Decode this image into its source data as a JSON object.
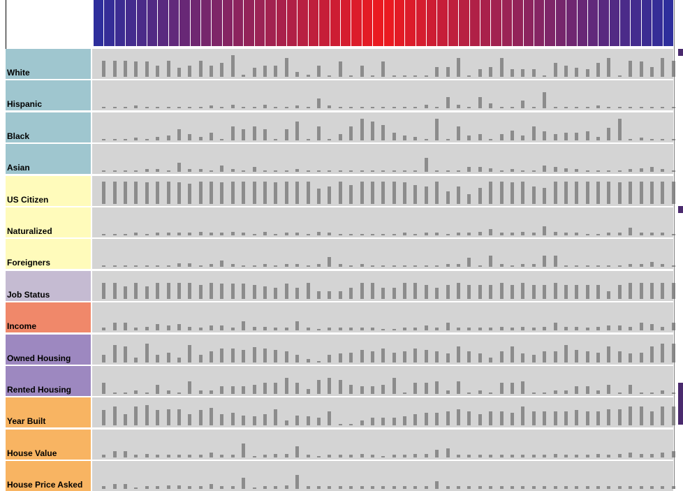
{
  "chart_data": {
    "type": "heatmap",
    "column_count": 54,
    "header_gradient": {
      "ends_color": "#2e2e9c",
      "center_color": "#ee1a1e"
    },
    "rows": [
      {
        "label": "White",
        "color": "#9fc6cf",
        "values": [
          0.65,
          0.65,
          0.65,
          0.6,
          0.6,
          0.45,
          0.65,
          0.35,
          0.45,
          0.65,
          0.45,
          0.55,
          0.85,
          0.08,
          0.35,
          0.45,
          0.45,
          0.75,
          0.2,
          0.08,
          0.45,
          0.05,
          0.6,
          0.05,
          0.45,
          0.05,
          0.6,
          0.05,
          0.05,
          0.05,
          0.05,
          0.4,
          0.4,
          0.75,
          0.05,
          0.3,
          0.4,
          0.75,
          0.3,
          0.3,
          0.3,
          0.05,
          0.55,
          0.45,
          0.35,
          0.3,
          0.55,
          0.75,
          0.05,
          0.65,
          0.6,
          0.4,
          0.75,
          0.65
        ]
      },
      {
        "label": "Hispanic",
        "color": "#9fc6cf",
        "values": [
          0.05,
          0.05,
          0.05,
          0.12,
          0.05,
          0.05,
          0.05,
          0.05,
          0.05,
          0.05,
          0.12,
          0.05,
          0.15,
          0.05,
          0.05,
          0.15,
          0.05,
          0.05,
          0.12,
          0.05,
          0.4,
          0.12,
          0.05,
          0.05,
          0.05,
          0.05,
          0.05,
          0.05,
          0.05,
          0.05,
          0.15,
          0.05,
          0.45,
          0.15,
          0.05,
          0.45,
          0.2,
          0.05,
          0.05,
          0.3,
          0.05,
          0.65,
          0.05,
          0.05,
          0.05,
          0.05,
          0.12,
          0.05,
          0.05,
          0.05,
          0.05,
          0.05,
          0.05,
          0.05
        ]
      },
      {
        "label": "Black",
        "color": "#9fc6cf",
        "values": [
          0.05,
          0.05,
          0.05,
          0.12,
          0.05,
          0.15,
          0.2,
          0.45,
          0.25,
          0.15,
          0.3,
          0.05,
          0.55,
          0.45,
          0.55,
          0.45,
          0.05,
          0.45,
          0.75,
          0.05,
          0.55,
          0.05,
          0.25,
          0.55,
          0.85,
          0.75,
          0.6,
          0.3,
          0.2,
          0.15,
          0.05,
          0.85,
          0.05,
          0.55,
          0.2,
          0.25,
          0.05,
          0.25,
          0.4,
          0.2,
          0.55,
          0.35,
          0.25,
          0.3,
          0.3,
          0.35,
          0.15,
          0.5,
          0.85,
          0.05,
          0.12,
          0.05,
          0.05,
          0.05
        ]
      },
      {
        "label": "Asian",
        "color": "#9fc6cf",
        "values": [
          0.05,
          0.05,
          0.05,
          0.05,
          0.12,
          0.12,
          0.05,
          0.35,
          0.12,
          0.12,
          0.05,
          0.25,
          0.12,
          0.05,
          0.2,
          0.05,
          0.05,
          0.05,
          0.12,
          0.05,
          0.05,
          0.05,
          0.05,
          0.05,
          0.05,
          0.05,
          0.05,
          0.05,
          0.05,
          0.05,
          0.55,
          0.05,
          0.05,
          0.05,
          0.2,
          0.2,
          0.15,
          0.05,
          0.12,
          0.05,
          0.05,
          0.25,
          0.2,
          0.15,
          0.12,
          0.05,
          0.05,
          0.05,
          0.05,
          0.12,
          0.15,
          0.2,
          0.12,
          0.05
        ]
      },
      {
        "label": "US Citizen",
        "color": "#fffbbb",
        "values": [
          0.9,
          0.9,
          0.9,
          0.9,
          0.85,
          0.9,
          0.9,
          0.85,
          0.8,
          0.9,
          0.9,
          0.85,
          0.9,
          0.9,
          0.9,
          0.9,
          0.85,
          0.9,
          0.9,
          0.9,
          0.6,
          0.7,
          0.9,
          0.75,
          0.9,
          0.9,
          0.9,
          0.9,
          0.85,
          0.75,
          0.7,
          0.9,
          0.5,
          0.7,
          0.4,
          0.65,
          0.9,
          0.9,
          0.85,
          0.9,
          0.7,
          0.65,
          0.9,
          0.9,
          0.9,
          0.9,
          0.9,
          0.9,
          0.85,
          0.9,
          0.9,
          0.9,
          0.9,
          0.9
        ]
      },
      {
        "label": "Naturalized",
        "color": "#fffbbb",
        "values": [
          0.05,
          0.05,
          0.05,
          0.12,
          0.05,
          0.12,
          0.12,
          0.12,
          0.12,
          0.15,
          0.12,
          0.12,
          0.15,
          0.12,
          0.05,
          0.15,
          0.05,
          0.12,
          0.12,
          0.05,
          0.15,
          0.12,
          0.05,
          0.05,
          0.05,
          0.05,
          0.05,
          0.05,
          0.12,
          0.05,
          0.12,
          0.12,
          0.05,
          0.12,
          0.12,
          0.15,
          0.25,
          0.12,
          0.12,
          0.15,
          0.12,
          0.35,
          0.15,
          0.12,
          0.12,
          0.05,
          0.05,
          0.12,
          0.12,
          0.3,
          0.12,
          0.12,
          0.12,
          0.05
        ]
      },
      {
        "label": "Foreigners",
        "color": "#fffbbb",
        "values": [
          0.05,
          0.05,
          0.05,
          0.05,
          0.05,
          0.05,
          0.05,
          0.15,
          0.15,
          0.05,
          0.12,
          0.25,
          0.12,
          0.05,
          0.05,
          0.12,
          0.05,
          0.12,
          0.12,
          0.05,
          0.12,
          0.4,
          0.12,
          0.05,
          0.12,
          0.05,
          0.05,
          0.05,
          0.05,
          0.05,
          0.05,
          0.05,
          0.12,
          0.12,
          0.35,
          0.05,
          0.45,
          0.12,
          0.05,
          0.12,
          0.12,
          0.45,
          0.45,
          0.05,
          0.05,
          0.05,
          0.05,
          0.05,
          0.05,
          0.12,
          0.12,
          0.2,
          0.12,
          0.05
        ]
      },
      {
        "label": "Job Status",
        "color": "#c5bbd2",
        "values": [
          0.65,
          0.65,
          0.5,
          0.65,
          0.5,
          0.65,
          0.65,
          0.65,
          0.65,
          0.55,
          0.65,
          0.6,
          0.6,
          0.6,
          0.55,
          0.5,
          0.45,
          0.6,
          0.45,
          0.65,
          0.3,
          0.3,
          0.3,
          0.45,
          0.65,
          0.65,
          0.45,
          0.45,
          0.65,
          0.65,
          0.55,
          0.45,
          0.55,
          0.65,
          0.55,
          0.55,
          0.55,
          0.65,
          0.55,
          0.65,
          0.55,
          0.55,
          0.65,
          0.55,
          0.55,
          0.55,
          0.55,
          0.3,
          0.55,
          0.65,
          0.65,
          0.65,
          0.65,
          0.65
        ]
      },
      {
        "label": "Income",
        "color": "#f0886a",
        "values": [
          0.12,
          0.3,
          0.3,
          0.12,
          0.15,
          0.25,
          0.2,
          0.25,
          0.15,
          0.12,
          0.2,
          0.2,
          0.12,
          0.35,
          0.15,
          0.15,
          0.12,
          0.12,
          0.35,
          0.12,
          0.05,
          0.12,
          0.12,
          0.12,
          0.12,
          0.12,
          0.05,
          0.05,
          0.12,
          0.12,
          0.2,
          0.12,
          0.3,
          0.12,
          0.12,
          0.12,
          0.12,
          0.15,
          0.12,
          0.15,
          0.12,
          0.15,
          0.3,
          0.15,
          0.15,
          0.12,
          0.15,
          0.2,
          0.2,
          0.15,
          0.3,
          0.25,
          0.15,
          0.3
        ]
      },
      {
        "label": "Owned Housing",
        "color": "#9d88c0",
        "values": [
          0.3,
          0.7,
          0.65,
          0.2,
          0.75,
          0.3,
          0.4,
          0.2,
          0.7,
          0.3,
          0.45,
          0.55,
          0.55,
          0.5,
          0.6,
          0.55,
          0.5,
          0.45,
          0.3,
          0.15,
          0.05,
          0.3,
          0.35,
          0.4,
          0.5,
          0.45,
          0.55,
          0.4,
          0.45,
          0.55,
          0.5,
          0.45,
          0.35,
          0.65,
          0.45,
          0.35,
          0.2,
          0.45,
          0.65,
          0.35,
          0.3,
          0.45,
          0.45,
          0.7,
          0.5,
          0.45,
          0.4,
          0.65,
          0.45,
          0.35,
          0.4,
          0.65,
          0.75,
          0.75
        ]
      },
      {
        "label": "Rented Housing",
        "color": "#9d88c0",
        "values": [
          0.45,
          0.05,
          0.05,
          0.15,
          0.05,
          0.35,
          0.15,
          0.05,
          0.5,
          0.15,
          0.15,
          0.3,
          0.3,
          0.3,
          0.35,
          0.45,
          0.45,
          0.65,
          0.45,
          0.2,
          0.55,
          0.65,
          0.55,
          0.35,
          0.3,
          0.3,
          0.35,
          0.65,
          0.05,
          0.45,
          0.45,
          0.5,
          0.15,
          0.5,
          0.05,
          0.15,
          0.05,
          0.45,
          0.45,
          0.5,
          0.05,
          0.05,
          0.15,
          0.15,
          0.3,
          0.3,
          0.15,
          0.35,
          0.05,
          0.35,
          0.05,
          0.05,
          0.15,
          0.05
        ]
      },
      {
        "label": "Year Built",
        "color": "#f8b462",
        "values": [
          0.6,
          0.75,
          0.45,
          0.75,
          0.8,
          0.6,
          0.65,
          0.65,
          0.45,
          0.6,
          0.7,
          0.45,
          0.5,
          0.4,
          0.35,
          0.45,
          0.65,
          0.2,
          0.4,
          0.35,
          0.3,
          0.55,
          0.05,
          0.05,
          0.2,
          0.3,
          0.3,
          0.3,
          0.35,
          0.45,
          0.5,
          0.5,
          0.55,
          0.65,
          0.55,
          0.45,
          0.55,
          0.55,
          0.5,
          0.75,
          0.55,
          0.55,
          0.55,
          0.55,
          0.6,
          0.55,
          0.55,
          0.65,
          0.65,
          0.75,
          0.75,
          0.55,
          0.75,
          0.75
        ]
      },
      {
        "label": "House Value",
        "color": "#f8b462",
        "values": [
          0.12,
          0.25,
          0.25,
          0.12,
          0.15,
          0.12,
          0.12,
          0.12,
          0.12,
          0.12,
          0.2,
          0.12,
          0.12,
          0.55,
          0.05,
          0.12,
          0.15,
          0.15,
          0.45,
          0.12,
          0.05,
          0.12,
          0.12,
          0.12,
          0.15,
          0.12,
          0.05,
          0.12,
          0.12,
          0.15,
          0.15,
          0.3,
          0.35,
          0.12,
          0.12,
          0.12,
          0.12,
          0.12,
          0.12,
          0.12,
          0.12,
          0.12,
          0.15,
          0.12,
          0.12,
          0.12,
          0.15,
          0.12,
          0.15,
          0.2,
          0.15,
          0.15,
          0.2,
          0.25
        ]
      },
      {
        "label": "House Price Asked",
        "color": "#f8b462",
        "values": [
          0.12,
          0.2,
          0.2,
          0.05,
          0.12,
          0.12,
          0.15,
          0.15,
          0.12,
          0.12,
          0.2,
          0.12,
          0.12,
          0.45,
          0.05,
          0.12,
          0.12,
          0.15,
          0.55,
          0.12,
          0.12,
          0.12,
          0.12,
          0.12,
          0.12,
          0.12,
          0.12,
          0.12,
          0.12,
          0.12,
          0.12,
          0.3,
          0.12,
          0.12,
          0.12,
          0.12,
          0.12,
          0.12,
          0.12,
          0.12,
          0.12,
          0.12,
          0.12,
          0.12,
          0.12,
          0.12,
          0.12,
          0.12,
          0.12,
          0.12,
          0.12,
          0.12,
          0.12,
          0.12
        ]
      }
    ]
  }
}
